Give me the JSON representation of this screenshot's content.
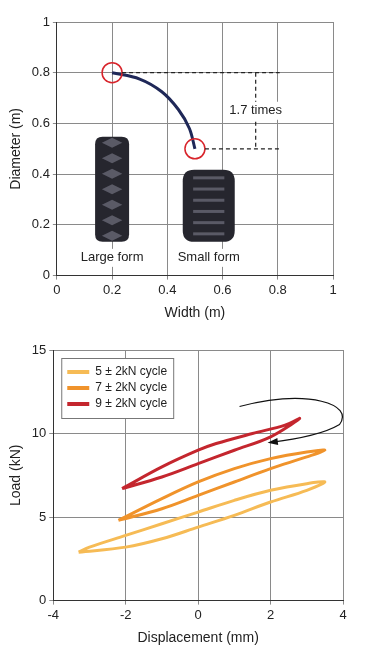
{
  "chart_data": [
    {
      "type": "line",
      "x_label": "Width (m)",
      "y_label": "Diameter (m)",
      "xlim": [
        0,
        1
      ],
      "xticks": [
        0,
        0.2,
        0.4,
        0.6,
        0.8,
        1
      ],
      "ylim": [
        0,
        1
      ],
      "yticks": [
        0,
        0.2,
        0.4,
        0.6,
        0.8,
        1
      ],
      "grid": true,
      "series": [
        {
          "color": "#1f2858",
          "marker": "circle",
          "x": [
            0.2,
            0.3,
            0.38,
            0.44,
            0.48,
            0.5
          ],
          "values": [
            0.8,
            0.775,
            0.725,
            0.655,
            0.58,
            0.5
          ]
        }
      ],
      "bracket": {
        "text": "1.7 times",
        "x": 0.72,
        "y": 0.65
      },
      "annotations": [
        {
          "text": "Large form",
          "x": 0.2,
          "y": 0.07
        },
        {
          "text": "Small form",
          "x": 0.55,
          "y": 0.07
        }
      ]
    },
    {
      "type": "line",
      "x_label": "Displacement (mm)",
      "y_label": "Load (kN)",
      "xlim": [
        -4,
        4
      ],
      "xticks": [
        -4,
        -2,
        0,
        2,
        4
      ],
      "ylim": [
        0,
        15
      ],
      "yticks": [
        0,
        5,
        10,
        15
      ],
      "grid": true,
      "legend": "upper left",
      "series": [
        {
          "name": "5 ± 2kN cycle",
          "color": "#f6bb55",
          "x": [
            -3.3,
            -2,
            -1,
            0,
            1,
            2,
            3,
            3.5,
            3,
            2,
            1,
            0,
            -1,
            -2,
            -3,
            -3.3
          ],
          "values": [
            2.9,
            3.2,
            3.7,
            4.4,
            5.1,
            5.9,
            6.6,
            7.1,
            7.0,
            6.6,
            6.0,
            5.3,
            4.6,
            3.9,
            3.2,
            2.9
          ]
        },
        {
          "name": "7 ± 2kN cycle",
          "color": "#f0932b",
          "x": [
            -2.2,
            -1,
            0,
            1,
            2,
            3,
            3.5,
            3,
            2,
            1,
            0,
            -1,
            -2.2
          ],
          "values": [
            4.8,
            5.5,
            6.3,
            7.1,
            7.9,
            8.6,
            9.0,
            8.9,
            8.5,
            7.9,
            7.1,
            6.1,
            4.8
          ]
        },
        {
          "name": "9 ± 2kN cycle",
          "color": "#c4262e",
          "x": [
            -2.1,
            -1,
            0,
            1,
            2,
            2.8,
            2.4,
            1.5,
            0.5,
            0,
            -1,
            -2.1
          ],
          "values": [
            6.7,
            7.4,
            8.2,
            9.0,
            9.8,
            10.9,
            10.5,
            10.0,
            9.4,
            9.0,
            8.0,
            6.7
          ]
        }
      ]
    }
  ]
}
